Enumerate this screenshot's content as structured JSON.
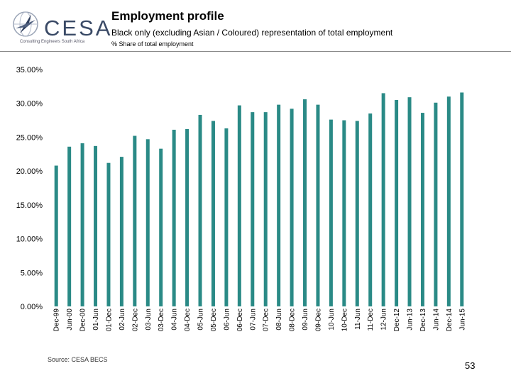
{
  "header": {
    "logo_text": "CESA",
    "logo_subtext": "Consulting Engineers South Africa",
    "title": "Employment profile",
    "subtitle": "Black only (excluding Asian / Coloured) representation of total employment",
    "measure_label": "% Share of total employment"
  },
  "footer": {
    "source": "Source: CESA BECS",
    "page_number": "53"
  },
  "colors": {
    "bar": "#2a8a86",
    "logo": "#3a4a66"
  },
  "chart_data": {
    "type": "bar",
    "title": "",
    "xlabel": "",
    "ylabel": "",
    "ylim": [
      0,
      35
    ],
    "yticks": [
      0,
      5,
      10,
      15,
      20,
      25,
      30,
      35
    ],
    "ytick_labels": [
      "0.00%",
      "5.00%",
      "10.00%",
      "15.00%",
      "20.00%",
      "25.00%",
      "30.00%",
      "35.00%"
    ],
    "grid": false,
    "categories": [
      "Dec-99",
      "Jun-00",
      "Dec-00",
      "01-Jun",
      "01-Dec",
      "02-Jun",
      "02-Dec",
      "03-Jun",
      "03-Dec",
      "04-Jun",
      "04-Dec",
      "05-Jun",
      "05-Dec",
      "06-Jun",
      "06-Dec",
      "07-Jun",
      "07-Dec",
      "08-Jun",
      "08-Dec",
      "09-Jun",
      "09-Dec",
      "10-Jun",
      "10-Dec",
      "11-Jun",
      "11-Dec",
      "12-Jun",
      "Dec-12",
      "Jun-13",
      "Dec-13",
      "Jun-14",
      "Dec-14",
      "Jun-15"
    ],
    "values": [
      20.8,
      23.6,
      24.1,
      23.7,
      21.2,
      22.1,
      25.2,
      24.7,
      23.3,
      26.1,
      26.2,
      28.3,
      27.4,
      26.3,
      29.7,
      28.7,
      28.7,
      29.8,
      29.2,
      30.6,
      29.8,
      27.6,
      27.5,
      27.4,
      28.5,
      31.5,
      30.5,
      30.9,
      28.6,
      30.1,
      31.0,
      31.6
    ]
  }
}
